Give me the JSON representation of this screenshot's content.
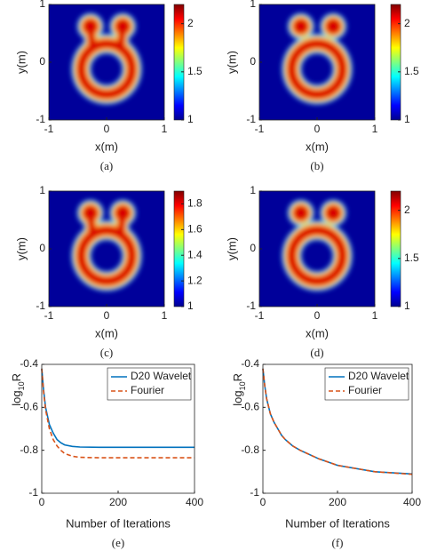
{
  "chart_data": [
    {
      "type": "heatmap",
      "caption": "(a)",
      "xlabel": "x(m)",
      "ylabel": "y(m)",
      "xlim": [
        -1,
        1
      ],
      "xticks": [
        -1,
        0,
        1
      ],
      "ylim": [
        -1,
        1
      ],
      "yticks": [
        -1,
        0,
        1
      ],
      "clim": [
        1,
        2.2
      ],
      "cticks": [
        1,
        1.5,
        2
      ]
    },
    {
      "type": "heatmap",
      "caption": "(b)",
      "xlabel": "x(m)",
      "ylabel": "y(m)",
      "xlim": [
        -1,
        1
      ],
      "xticks": [
        -1,
        0,
        1
      ],
      "ylim": [
        -1,
        1
      ],
      "yticks": [
        -1,
        0,
        1
      ],
      "clim": [
        1,
        2.2
      ],
      "cticks": [
        1,
        1.5,
        2
      ]
    },
    {
      "type": "heatmap",
      "caption": "(c)",
      "xlabel": "x(m)",
      "ylabel": "y(m)",
      "xlim": [
        -1,
        1
      ],
      "xticks": [
        -1,
        0,
        1
      ],
      "ylim": [
        -1,
        1
      ],
      "yticks": [
        -1,
        0,
        1
      ],
      "clim": [
        1,
        1.9
      ],
      "cticks": [
        1,
        1.2,
        1.4,
        1.6,
        1.8
      ]
    },
    {
      "type": "heatmap",
      "caption": "(d)",
      "xlabel": "x(m)",
      "ylabel": "y(m)",
      "xlim": [
        -1,
        1
      ],
      "xticks": [
        -1,
        0,
        1
      ],
      "ylim": [
        -1,
        1
      ],
      "yticks": [
        -1,
        0,
        1
      ],
      "clim": [
        1,
        2.2
      ],
      "cticks": [
        1,
        1.5,
        2
      ]
    },
    {
      "type": "line",
      "caption": "(e)",
      "xlabel": "Number of Iterations",
      "ylabel": [
        "log",
        "10",
        "R"
      ],
      "xlim": [
        0,
        400
      ],
      "xticks": [
        0,
        200,
        400
      ],
      "ylim": [
        -1,
        -0.4
      ],
      "yticks": [
        -1,
        -0.8,
        -0.6,
        -0.4
      ],
      "legend": "upper right",
      "x": [
        0,
        5,
        10,
        20,
        30,
        40,
        50,
        60,
        80,
        100,
        150,
        200,
        300,
        400
      ],
      "series": [
        {
          "name": "D20 Wavelet",
          "color": "#0072bd",
          "dash": false,
          "values": [
            -0.42,
            -0.52,
            -0.6,
            -0.68,
            -0.72,
            -0.75,
            -0.765,
            -0.775,
            -0.782,
            -0.785,
            -0.786,
            -0.786,
            -0.786,
            -0.786
          ]
        },
        {
          "name": "Fourier",
          "color": "#d95319",
          "dash": true,
          "values": [
            -0.42,
            -0.53,
            -0.61,
            -0.7,
            -0.75,
            -0.78,
            -0.8,
            -0.815,
            -0.828,
            -0.833,
            -0.835,
            -0.835,
            -0.835,
            -0.835
          ]
        }
      ]
    },
    {
      "type": "line",
      "caption": "(f)",
      "xlabel": "Number of Iterations",
      "ylabel": [
        "log",
        "10",
        "R"
      ],
      "xlim": [
        0,
        400
      ],
      "xticks": [
        0,
        200,
        400
      ],
      "ylim": [
        -1,
        -0.4
      ],
      "yticks": [
        -1,
        -0.8,
        -0.6,
        -0.4
      ],
      "legend": "upper right",
      "x": [
        0,
        5,
        10,
        20,
        30,
        40,
        50,
        60,
        80,
        100,
        150,
        200,
        300,
        400
      ],
      "series": [
        {
          "name": "D20 Wavelet",
          "color": "#0072bd",
          "dash": false,
          "values": [
            -0.42,
            -0.5,
            -0.56,
            -0.63,
            -0.67,
            -0.7,
            -0.73,
            -0.75,
            -0.78,
            -0.8,
            -0.84,
            -0.87,
            -0.9,
            -0.91
          ]
        },
        {
          "name": "Fourier",
          "color": "#d95319",
          "dash": true,
          "values": [
            -0.42,
            -0.5,
            -0.56,
            -0.63,
            -0.67,
            -0.7,
            -0.73,
            -0.75,
            -0.78,
            -0.8,
            -0.84,
            -0.87,
            -0.9,
            -0.912
          ]
        }
      ]
    }
  ]
}
